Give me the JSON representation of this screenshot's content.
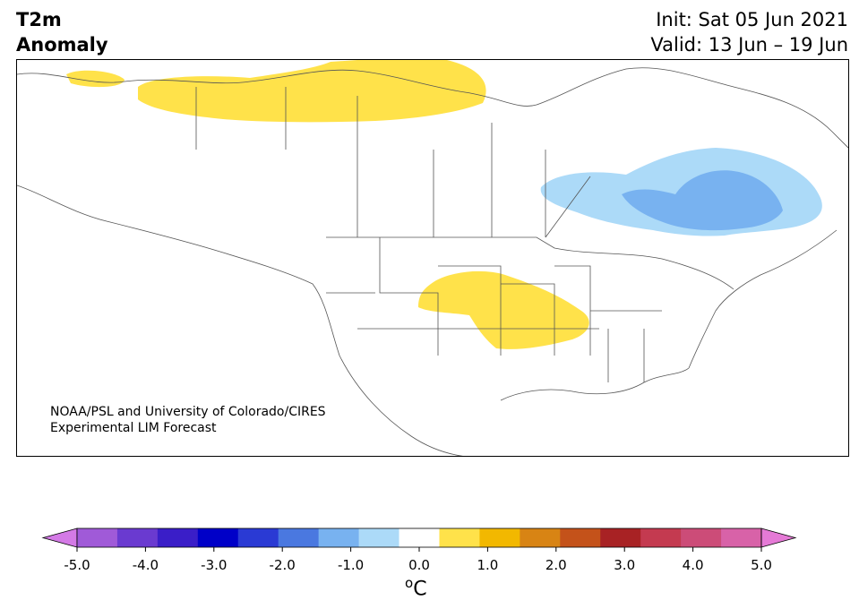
{
  "header": {
    "title_line1": "T2m",
    "title_line2": "Anomaly",
    "init": "Init: Sat 05 Jun 2021",
    "valid": "Valid: 13 Jun – 19 Jun"
  },
  "credit": {
    "line1": "NOAA/PSL and University of Colorado/CIRES",
    "line2": "Experimental LIM Forecast"
  },
  "colorbar": {
    "colors": [
      "#d47ae6",
      "#a05ad8",
      "#6a3ad0",
      "#3a1ec8",
      "#0000c8",
      "#2a3ad4",
      "#4a78e0",
      "#78b2f0",
      "#acdaf8",
      "#ffffff",
      "#ffe24a",
      "#f2b800",
      "#d88414",
      "#c4521a",
      "#a82224",
      "#c43a50",
      "#cc4c78",
      "#d862a8",
      "#e57ad6"
    ],
    "tick_labels": [
      "-5.0",
      "-4.0",
      "-3.0",
      "-2.0",
      "-1.0",
      "0.0",
      "1.0",
      "2.0",
      "3.0",
      "4.0",
      "5.0"
    ],
    "unit_base": "C",
    "unit_sup": "o"
  },
  "anomaly_colors": {
    "warm": "#ffe24a",
    "cool_light": "#acdaf8",
    "cool_mid": "#78b2f0"
  }
}
